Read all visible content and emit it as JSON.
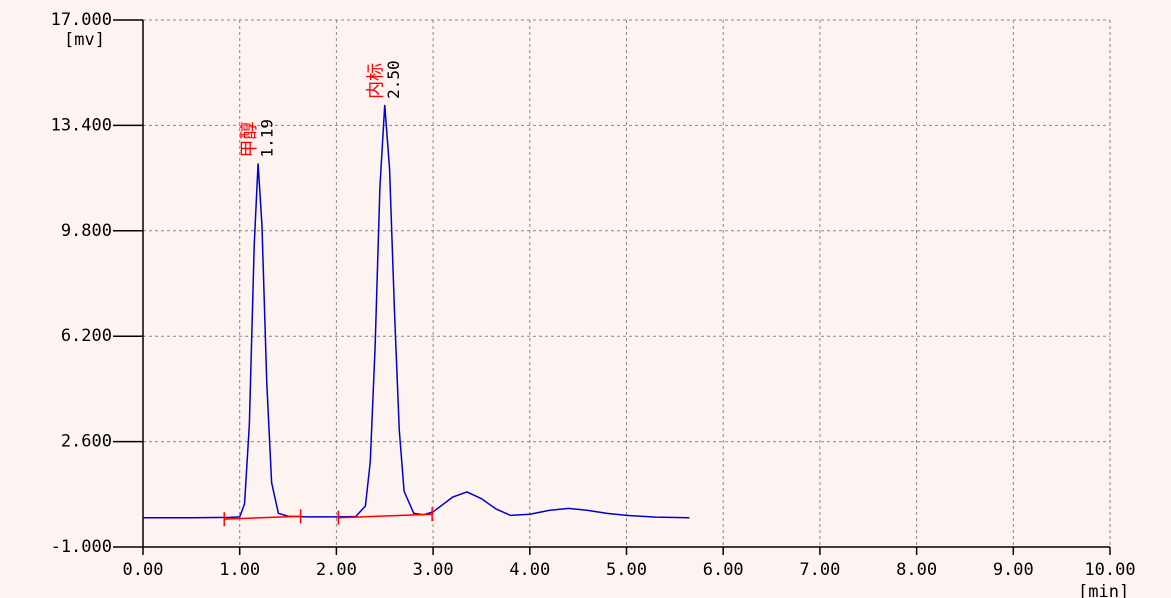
{
  "chart_data": {
    "type": "line",
    "y_label": "[mv]",
    "x_label": "[min]",
    "xlim": [
      0,
      10
    ],
    "ylim": [
      -1,
      17
    ],
    "xticks": [
      {
        "value": 0,
        "label": "0.00"
      },
      {
        "value": 1,
        "label": "1.00"
      },
      {
        "value": 2,
        "label": "2.00"
      },
      {
        "value": 3,
        "label": "3.00"
      },
      {
        "value": 4,
        "label": "4.00"
      },
      {
        "value": 5,
        "label": "5.00"
      },
      {
        "value": 6,
        "label": "6.00"
      },
      {
        "value": 7,
        "label": "7.00"
      },
      {
        "value": 8,
        "label": "8.00"
      },
      {
        "value": 9,
        "label": "9.00"
      },
      {
        "value": 10,
        "label": "10.00"
      }
    ],
    "yticks": [
      {
        "value": -1,
        "label": "-1.000"
      },
      {
        "value": 2.6,
        "label": "2.600"
      },
      {
        "value": 6.2,
        "label": "6.200"
      },
      {
        "value": 9.8,
        "label": "9.800"
      },
      {
        "value": 13.4,
        "label": "13.400"
      },
      {
        "value": 17,
        "label": "17.000"
      }
    ],
    "grid": true,
    "series": [
      {
        "color": "#0000cc",
        "x": [
          0,
          0.5,
          0.9,
          1.0,
          1.05,
          1.1,
          1.15,
          1.19,
          1.23,
          1.28,
          1.33,
          1.4,
          1.5,
          1.7,
          2.0,
          2.2,
          2.3,
          2.35,
          2.4,
          2.45,
          2.5,
          2.55,
          2.6,
          2.65,
          2.7,
          2.8,
          2.9,
          3.0,
          3.1,
          3.2,
          3.35,
          3.5,
          3.65,
          3.8,
          4.0,
          4.2,
          4.4,
          4.6,
          4.8,
          5.0,
          5.3,
          5.65
        ],
        "values": [
          0,
          0,
          0.01,
          0.03,
          0.47,
          3.2,
          9.3,
          12.1,
          10.0,
          4.6,
          1.2,
          0.15,
          0.05,
          0.03,
          0.03,
          0.04,
          0.4,
          1.9,
          5.8,
          11.3,
          14.1,
          11.9,
          7.1,
          3.0,
          0.9,
          0.15,
          0.1,
          0.2,
          0.45,
          0.7,
          0.88,
          0.65,
          0.3,
          0.08,
          0.12,
          0.25,
          0.32,
          0.25,
          0.15,
          0.08,
          0.02,
          0
        ]
      }
    ],
    "baselines": [
      {
        "x": [
          0.84,
          1.63
        ],
        "y": [
          -0.05,
          0.05
        ],
        "color": "#ff0000"
      },
      {
        "x": [
          2.02,
          2.99
        ],
        "y": [
          0.0,
          0.12
        ],
        "color": "#ff0000"
      }
    ],
    "peaks": [
      {
        "x": 1.19,
        "y": 12.1,
        "name": "甲醇",
        "label": "1.19"
      },
      {
        "x": 2.5,
        "y": 14.1,
        "name": "内标",
        "label": "2.50"
      }
    ]
  }
}
